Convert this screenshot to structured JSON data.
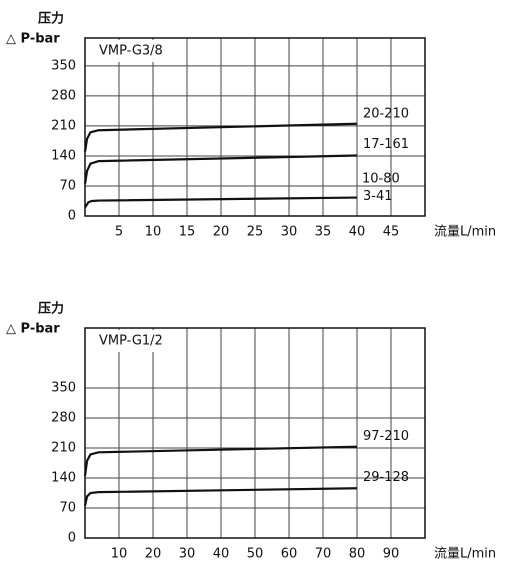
{
  "chart_data": [
    {
      "type": "line",
      "title": "VMP-G3/8",
      "ylabel": [
        "压力",
        "△ P-bar"
      ],
      "xlabel": "流量L/min",
      "xlim": [
        0,
        50
      ],
      "xticks": [
        5,
        10,
        15,
        20,
        25,
        30,
        35,
        40,
        45
      ],
      "ylim": [
        0,
        415
      ],
      "yticks": [
        0,
        70,
        140,
        210,
        280,
        350
      ],
      "grid": true,
      "series": [
        {
          "name": "20-210",
          "color": "#111111",
          "x": [
            0,
            0.3,
            0.8,
            2,
            40
          ],
          "values": [
            150,
            180,
            195,
            200,
            215
          ]
        },
        {
          "name": "17-161",
          "color": "#111111",
          "x": [
            0,
            0.3,
            0.8,
            2,
            40
          ],
          "values": [
            75,
            105,
            122,
            128,
            141
          ]
        },
        {
          "name": "3-41",
          "color": "#111111",
          "x": [
            0,
            0.5,
            1,
            2,
            40
          ],
          "values": [
            20,
            32,
            35,
            36,
            43
          ]
        }
      ],
      "annotations": [
        "10-80"
      ]
    },
    {
      "type": "line",
      "title": "VMP-G1/2",
      "ylabel": [
        "压力",
        "△ P-bar"
      ],
      "xlabel": "流量L/min",
      "xlim": [
        0,
        100
      ],
      "xticks": [
        10,
        20,
        30,
        40,
        50,
        60,
        70,
        80,
        90
      ],
      "ylim": [
        0,
        490
      ],
      "yticks": [
        0,
        70,
        140,
        210,
        280,
        350
      ],
      "grid": true,
      "series": [
        {
          "name": "97-210",
          "color": "#111111",
          "x": [
            0,
            0.6,
            1.6,
            4,
            80
          ],
          "values": [
            145,
            180,
            195,
            200,
            213
          ]
        },
        {
          "name": "29-128",
          "color": "#111111",
          "x": [
            0,
            0.6,
            1.6,
            4,
            80
          ],
          "values": [
            75,
            97,
            105,
            107,
            116
          ]
        }
      ]
    }
  ]
}
